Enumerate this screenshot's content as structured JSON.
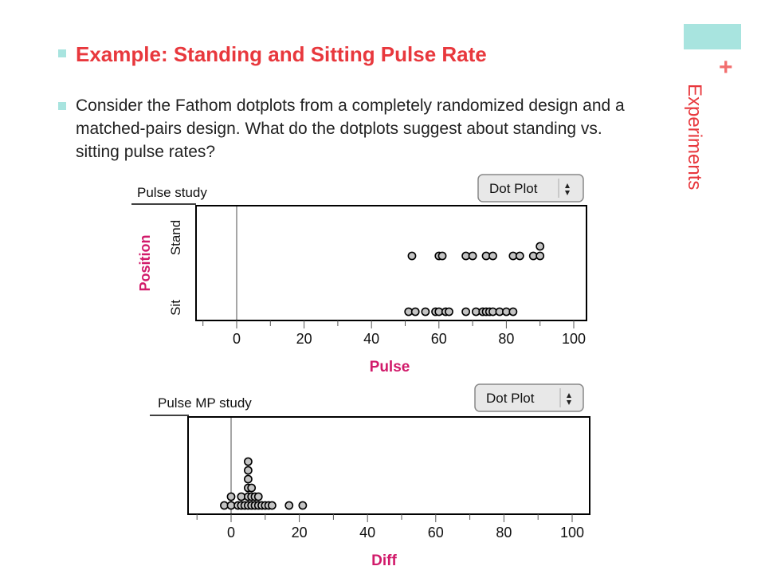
{
  "slide": {
    "heading": "Example: Standing and Sitting Pulse Rate",
    "body": "Consider the Fathom dotplots from a completely randomized design and a matched-pairs design.  What do the dotplots suggest about standing vs. sitting pulse rates?",
    "side_title": "Experiments",
    "plus": "+"
  },
  "colors": {
    "accent": "#a8e4df",
    "title": "#e8383d",
    "axis_label": "#d11a6a"
  },
  "chart_data": [
    {
      "type": "scatter",
      "title": "Pulse study",
      "dropdown": "Dot Plot",
      "xlabel": "Pulse",
      "ylabel": "Position",
      "categories": [
        "Sit",
        "Stand"
      ],
      "xlim": [
        -10,
        100
      ],
      "xticks": [
        0,
        20,
        40,
        60,
        80,
        100
      ],
      "series": [
        {
          "name": "Stand",
          "values": [
            52,
            60,
            61,
            68,
            70,
            74,
            76,
            82,
            84,
            88,
            90,
            90
          ]
        },
        {
          "name": "Sit",
          "values": [
            51,
            53,
            56,
            59,
            60,
            62,
            63,
            68,
            71,
            73,
            74,
            75,
            76,
            78,
            80,
            82
          ]
        }
      ]
    },
    {
      "type": "scatter",
      "title": "Pulse MP study",
      "dropdown": "Dot Plot",
      "xlabel": "Diff",
      "xlim": [
        -10,
        100
      ],
      "xticks": [
        0,
        20,
        40,
        60,
        80,
        100
      ],
      "values": [
        -2,
        0,
        0,
        2,
        3,
        3,
        4,
        5,
        5,
        5,
        5,
        5,
        5,
        6,
        6,
        6,
        7,
        7,
        8,
        8,
        9,
        10,
        11,
        12,
        17,
        21
      ]
    }
  ]
}
